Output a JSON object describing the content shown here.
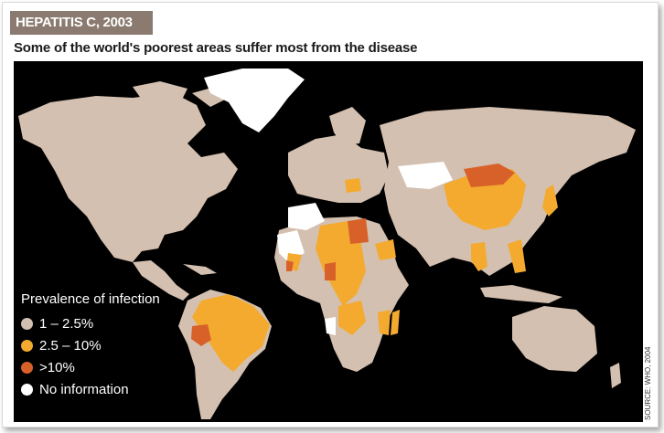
{
  "title": "HEPATITIS C, 2003",
  "subtitle": "Some of the world's poorest areas suffer most from the disease",
  "legend": {
    "title": "Prevalence of infection",
    "items": [
      {
        "label": "1 – 2.5%",
        "color": "#d4c0b0"
      },
      {
        "label": "2.5 – 10%",
        "color": "#f3aa2f"
      },
      {
        "label": ">10%",
        "color": "#d8612a"
      },
      {
        "label": "No information",
        "color": "#ffffff"
      }
    ]
  },
  "source": "SOURCE: WHO, 2004",
  "colors": {
    "ocean": "#000000",
    "low": "#d4c0b0",
    "mid": "#f3aa2f",
    "high": "#d8612a",
    "none": "#ffffff",
    "title_bar": "#8a7a6f"
  }
}
